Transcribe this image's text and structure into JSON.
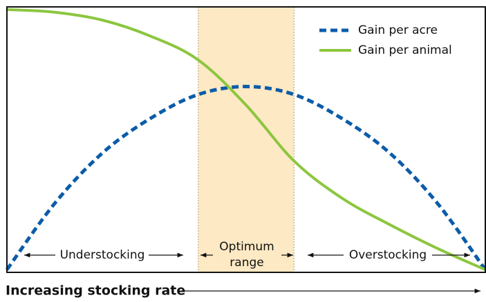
{
  "chart_data": {
    "type": "line",
    "x_label": "Increasing stocking rate",
    "x": [
      0,
      10,
      20,
      30,
      40,
      50,
      60,
      70,
      80,
      90,
      100
    ],
    "xlim": [
      0,
      100
    ],
    "ylim": [
      0,
      100
    ],
    "shaded_range": [
      40,
      60
    ],
    "shaded_color": "#fde9c4",
    "annotations": [
      "Understocking",
      "Optimum",
      "range",
      "Overstocking"
    ],
    "legend": "top-right",
    "series": [
      {
        "name": "Gain per acre",
        "color": "#0b5ca8",
        "dashed": true,
        "values": [
          1,
          26,
          45,
          58,
          67,
          70,
          67,
          58,
          45,
          26,
          1
        ]
      },
      {
        "name": "Gain per animal",
        "color": "#8cc63f",
        "dashed": false,
        "values": [
          99,
          98,
          95,
          89,
          80,
          63,
          42,
          28,
          18,
          9,
          1
        ]
      }
    ]
  }
}
